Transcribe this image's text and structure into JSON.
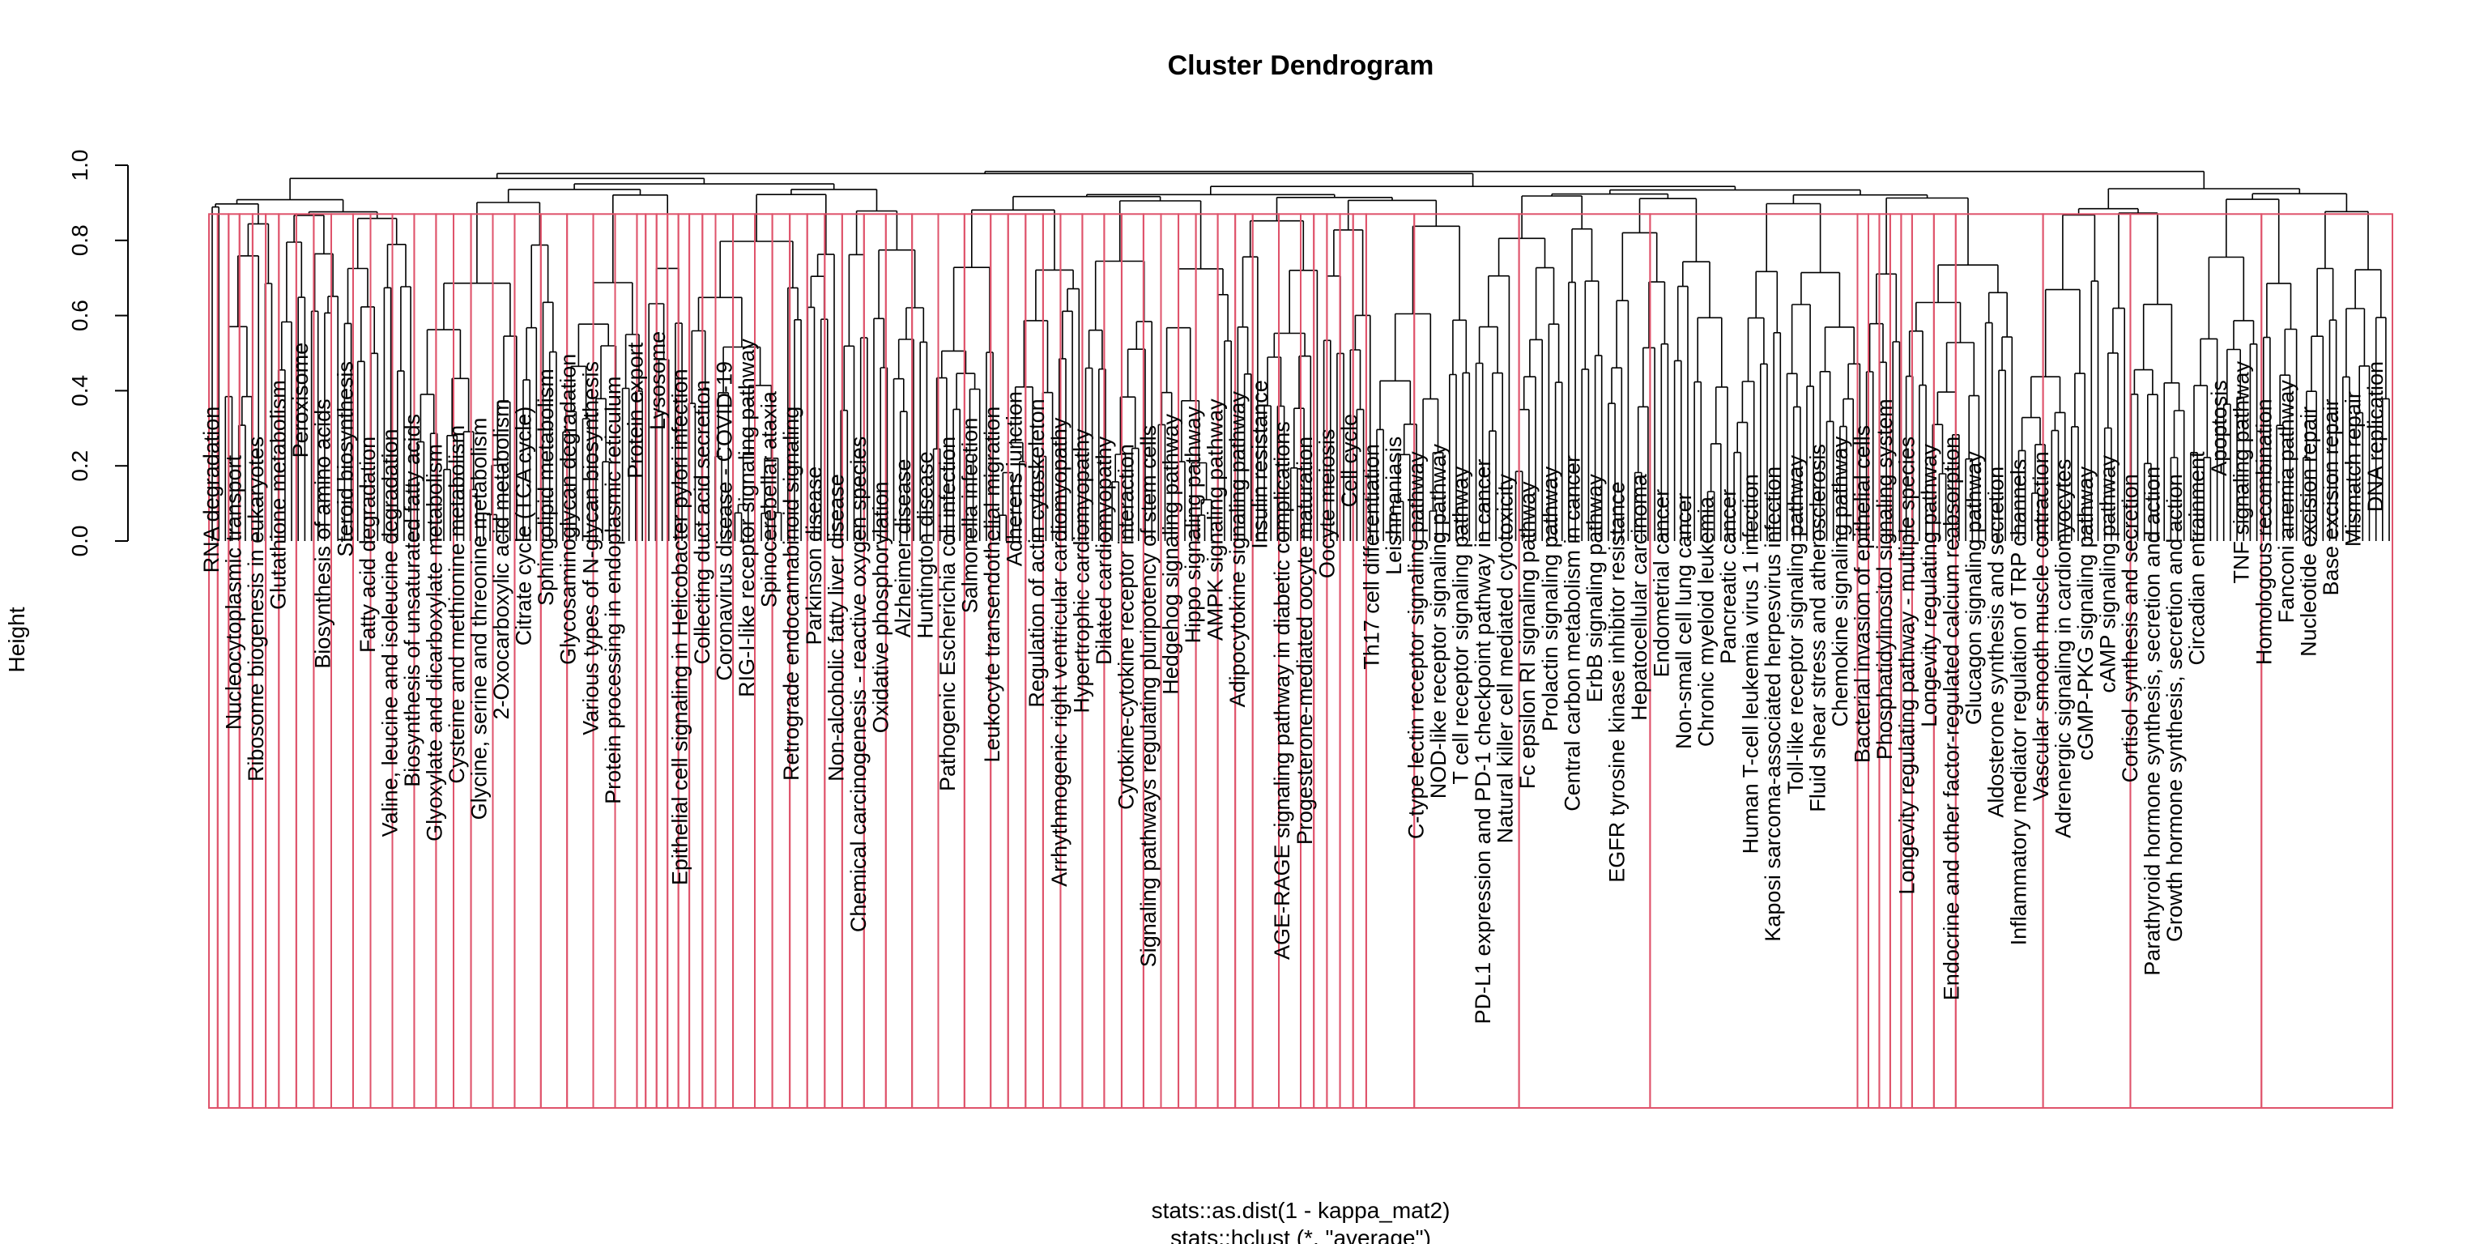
{
  "chart_data": {
    "type": "dendrogram",
    "title": "Cluster Dendrogram",
    "ylabel": "Height",
    "xlabel_line1": "stats::as.dist(1 - kappa_mat2)",
    "xlabel_line2": "stats::hclust (*, \"average\")",
    "ylim": [
      0,
      1.0
    ],
    "yticks": [
      "0.0",
      "0.2",
      "0.4",
      "0.6",
      "0.8",
      "1.0"
    ],
    "cut_height": 0.87,
    "leaf_count": 330,
    "colors": {
      "tree": "#000000",
      "cluster_box": "#DF536B"
    },
    "leaf_labels": [
      {
        "label": "RNA degradation",
        "height": 0.38
      },
      {
        "label": "Nucleocytoplasmic transport",
        "height": 0.25
      },
      {
        "label": "Ribosome biogenesis in eukaryotes",
        "height": 0.3
      },
      {
        "label": "Glutathione metabolism",
        "height": 0.45
      },
      {
        "label": "Peroxisome",
        "height": 0.55
      },
      {
        "label": "Biosynthesis of amino acids",
        "height": 0.4
      },
      {
        "label": "Steroid biosynthesis",
        "height": 0.5
      },
      {
        "label": "Fatty acid degradation",
        "height": 0.3
      },
      {
        "label": "Valine, leucine and isoleucine degradation",
        "height": 0.32
      },
      {
        "label": "Biosynthesis of unsaturated fatty acids",
        "height": 0.36
      },
      {
        "label": "Glyoxylate and dicarboxylate metabolism",
        "height": 0.28
      },
      {
        "label": "Cysteine and methionine metabolism",
        "height": 0.33
      },
      {
        "label": "Glycine, serine and threonine metabolism",
        "height": 0.35
      },
      {
        "label": "2-Oxocarboxylic acid metabolism",
        "height": 0.4
      },
      {
        "label": "Citrate cycle (TCA cycle)",
        "height": 0.38
      },
      {
        "label": "Sphingolipid metabolism",
        "height": 0.48
      },
      {
        "label": "Glycosaminoglycan degradation",
        "height": 0.52
      },
      {
        "label": "Various types of N-glycan biosynthesis",
        "height": 0.5
      },
      {
        "label": "Protein processing in endoplasmic reticulum",
        "height": 0.46
      },
      {
        "label": "Protein export",
        "height": 0.55
      },
      {
        "label": "Lysosome",
        "height": 0.58
      },
      {
        "label": "Epithelial cell signaling in Helicobacter pylori infection",
        "height": 0.48
      },
      {
        "label": "Collecting duct acid secretion",
        "height": 0.45
      },
      {
        "label": "Coronavirus disease - COVID-19",
        "height": 0.5
      },
      {
        "label": "RIG-I-like receptor signaling pathway",
        "height": 0.56
      },
      {
        "label": "Spinocerebellar ataxia",
        "height": 0.42
      },
      {
        "label": "Retrograde endocannabinoid signaling",
        "height": 0.38
      },
      {
        "label": "Parkinson disease",
        "height": 0.22
      },
      {
        "label": "Non-alcoholic fatty liver disease",
        "height": 0.2
      },
      {
        "label": "Chemical carcinogenesis - reactive oxygen species",
        "height": 0.3
      },
      {
        "label": "Oxidative phosphorylation",
        "height": 0.18
      },
      {
        "label": "Alzheimer disease",
        "height": 0.24
      },
      {
        "label": "Huntington disease",
        "height": 0.26
      },
      {
        "label": "Pathogenic Escherichia coli infection",
        "height": 0.3
      },
      {
        "label": "Salmonella infection",
        "height": 0.35
      },
      {
        "label": "Leukocyte transendothelial migration",
        "height": 0.38
      },
      {
        "label": "Adherens junction",
        "height": 0.42
      },
      {
        "label": "Regulation of actin cytoskeleton",
        "height": 0.4
      },
      {
        "label": "Arrhythmogenic right ventricular cardiomyopathy",
        "height": 0.35
      },
      {
        "label": "Hypertrophic cardiomyopathy",
        "height": 0.32
      },
      {
        "label": "Dilated cardiomyopathy",
        "height": 0.3
      },
      {
        "label": "Cytokine-cytokine receptor interaction",
        "height": 0.28
      },
      {
        "label": "Signaling pathways regulating pluripotency of stem cells",
        "height": 0.33
      },
      {
        "label": "Hedgehog signaling pathway",
        "height": 0.36
      },
      {
        "label": "Hippo signaling pathway",
        "height": 0.38
      },
      {
        "label": "AMPK signaling pathway",
        "height": 0.4
      },
      {
        "label": "Adipocytokine signaling pathway",
        "height": 0.42
      },
      {
        "label": "Insulin resistance",
        "height": 0.45
      },
      {
        "label": "AGE-RAGE signaling pathway in diabetic complications",
        "height": 0.34
      },
      {
        "label": "Progesterone-mediated oocyte maturation",
        "height": 0.3
      },
      {
        "label": "Oocyte meiosis",
        "height": 0.32
      },
      {
        "label": "Cell cycle",
        "height": 0.36
      },
      {
        "label": "Th17 cell differentiation",
        "height": 0.28
      },
      {
        "label": "Leishmaniasis",
        "height": 0.3
      },
      {
        "label": "C-type lectin receptor signaling pathway",
        "height": 0.26
      },
      {
        "label": "NOD-like receptor signaling pathway",
        "height": 0.28
      },
      {
        "label": "T cell receptor signaling pathway",
        "height": 0.22
      },
      {
        "label": "PD-L1 expression and PD-1 checkpoint pathway in cancer",
        "height": 0.24
      },
      {
        "label": "Natural killer cell mediated cytotoxicity",
        "height": 0.2
      },
      {
        "label": "Fc epsilon RI signaling pathway",
        "height": 0.18
      },
      {
        "label": "Prolactin signaling pathway",
        "height": 0.22
      },
      {
        "label": "Central carbon metabolism in cancer",
        "height": 0.25
      },
      {
        "label": "ErbB signaling pathway",
        "height": 0.2
      },
      {
        "label": "EGFR tyrosine kinase inhibitor resistance",
        "height": 0.18
      },
      {
        "label": "Hepatocellular carcinoma",
        "height": 0.2
      },
      {
        "label": "Endometrial cancer",
        "height": 0.16
      },
      {
        "label": "Non-small cell lung cancer",
        "height": 0.15
      },
      {
        "label": "Chronic myeloid leukemia",
        "height": 0.14
      },
      {
        "label": "Pancreatic cancer",
        "height": 0.16
      },
      {
        "label": "Human T-cell leukemia virus 1 infection",
        "height": 0.2
      },
      {
        "label": "Kaposi sarcoma-associated herpesvirus infection",
        "height": 0.22
      },
      {
        "label": "Toll-like receptor signaling pathway",
        "height": 0.25
      },
      {
        "label": "Fluid shear stress and atherosclerosis",
        "height": 0.28
      },
      {
        "label": "Chemokine signaling pathway",
        "height": 0.3
      },
      {
        "label": "Bacterial invasion of epithelial cells",
        "height": 0.33
      },
      {
        "label": "Phosphatidylinositol signaling system",
        "height": 0.4
      },
      {
        "label": "Longevity regulating pathway - multiple species",
        "height": 0.3
      },
      {
        "label": "Longevity regulating pathway",
        "height": 0.28
      },
      {
        "label": "Endocrine and other factor-regulated calcium reabsorption",
        "height": 0.3
      },
      {
        "label": "Glucagon signaling pathway",
        "height": 0.26
      },
      {
        "label": "Aldosterone synthesis and secretion",
        "height": 0.22
      },
      {
        "label": "Inflammatory mediator regulation of TRP channels",
        "height": 0.24
      },
      {
        "label": "Vascular smooth muscle contraction",
        "height": 0.26
      },
      {
        "label": "Adrenergic signaling in cardiomyocytes",
        "height": 0.24
      },
      {
        "label": "cGMP-PKG signaling pathway",
        "height": 0.22
      },
      {
        "label": "cAMP signaling pathway",
        "height": 0.25
      },
      {
        "label": "Cortisol synthesis and secretion",
        "height": 0.2
      },
      {
        "label": "Parathyroid hormone synthesis, secretion and action",
        "height": 0.22
      },
      {
        "label": "Growth hormone synthesis, secretion and action",
        "height": 0.2
      },
      {
        "label": "Circadian entrainment",
        "height": 0.26
      },
      {
        "label": "Apoptosis",
        "height": 0.45
      },
      {
        "label": "TNF signaling pathway",
        "height": 0.5
      },
      {
        "label": "Homologous recombination",
        "height": 0.4
      },
      {
        "label": "Fanconi anemia pathway",
        "height": 0.45
      },
      {
        "label": "Nucleotide excision repair",
        "height": 0.38
      },
      {
        "label": "Base excision repair",
        "height": 0.4
      },
      {
        "label": "Mismatch repair",
        "height": 0.42
      },
      {
        "label": "DNA replication",
        "height": 0.5
      }
    ]
  }
}
